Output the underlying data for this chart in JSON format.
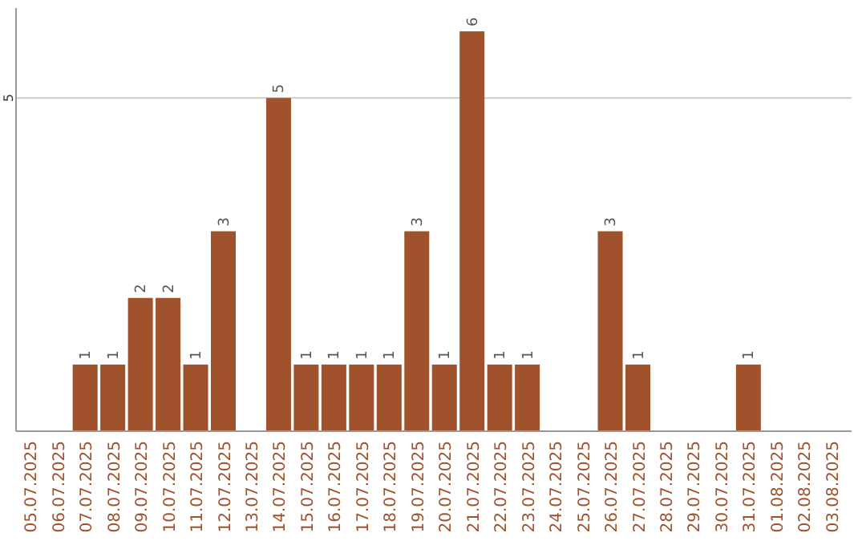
{
  "chart_data": {
    "type": "bar",
    "categories": [
      "05.07.2025",
      "06.07.2025",
      "07.07.2025",
      "08.07.2025",
      "09.07.2025",
      "10.07.2025",
      "11.07.2025",
      "12.07.2025",
      "13.07.2025",
      "14.07.2025",
      "15.07.2025",
      "16.07.2025",
      "17.07.2025",
      "18.07.2025",
      "19.07.2025",
      "20.07.2025",
      "21.07.2025",
      "22.07.2025",
      "23.07.2025",
      "24.07.2025",
      "25.07.2025",
      "26.07.2025",
      "27.07.2025",
      "28.07.2025",
      "29.07.2025",
      "30.07.2025",
      "31.07.2025",
      "01.08.2025",
      "02.08.2025",
      "03.08.2025"
    ],
    "values": [
      0,
      0,
      1,
      1,
      2,
      2,
      1,
      3,
      0,
      5,
      1,
      1,
      1,
      1,
      3,
      1,
      6,
      1,
      1,
      0,
      0,
      3,
      1,
      0,
      0,
      0,
      1,
      0,
      0,
      0
    ],
    "value_labels": [
      null,
      null,
      "1",
      "1",
      "2",
      "2",
      "1",
      "3",
      null,
      "5",
      "1",
      "1",
      "1",
      "1",
      "3",
      "1",
      "6",
      "1",
      "1",
      null,
      null,
      "3",
      "1",
      null,
      null,
      null,
      "1",
      null,
      null,
      null
    ],
    "color": "#a0522d",
    "ylim": [
      0,
      6.35
    ],
    "yticks": [
      5
    ],
    "grid": "y"
  }
}
